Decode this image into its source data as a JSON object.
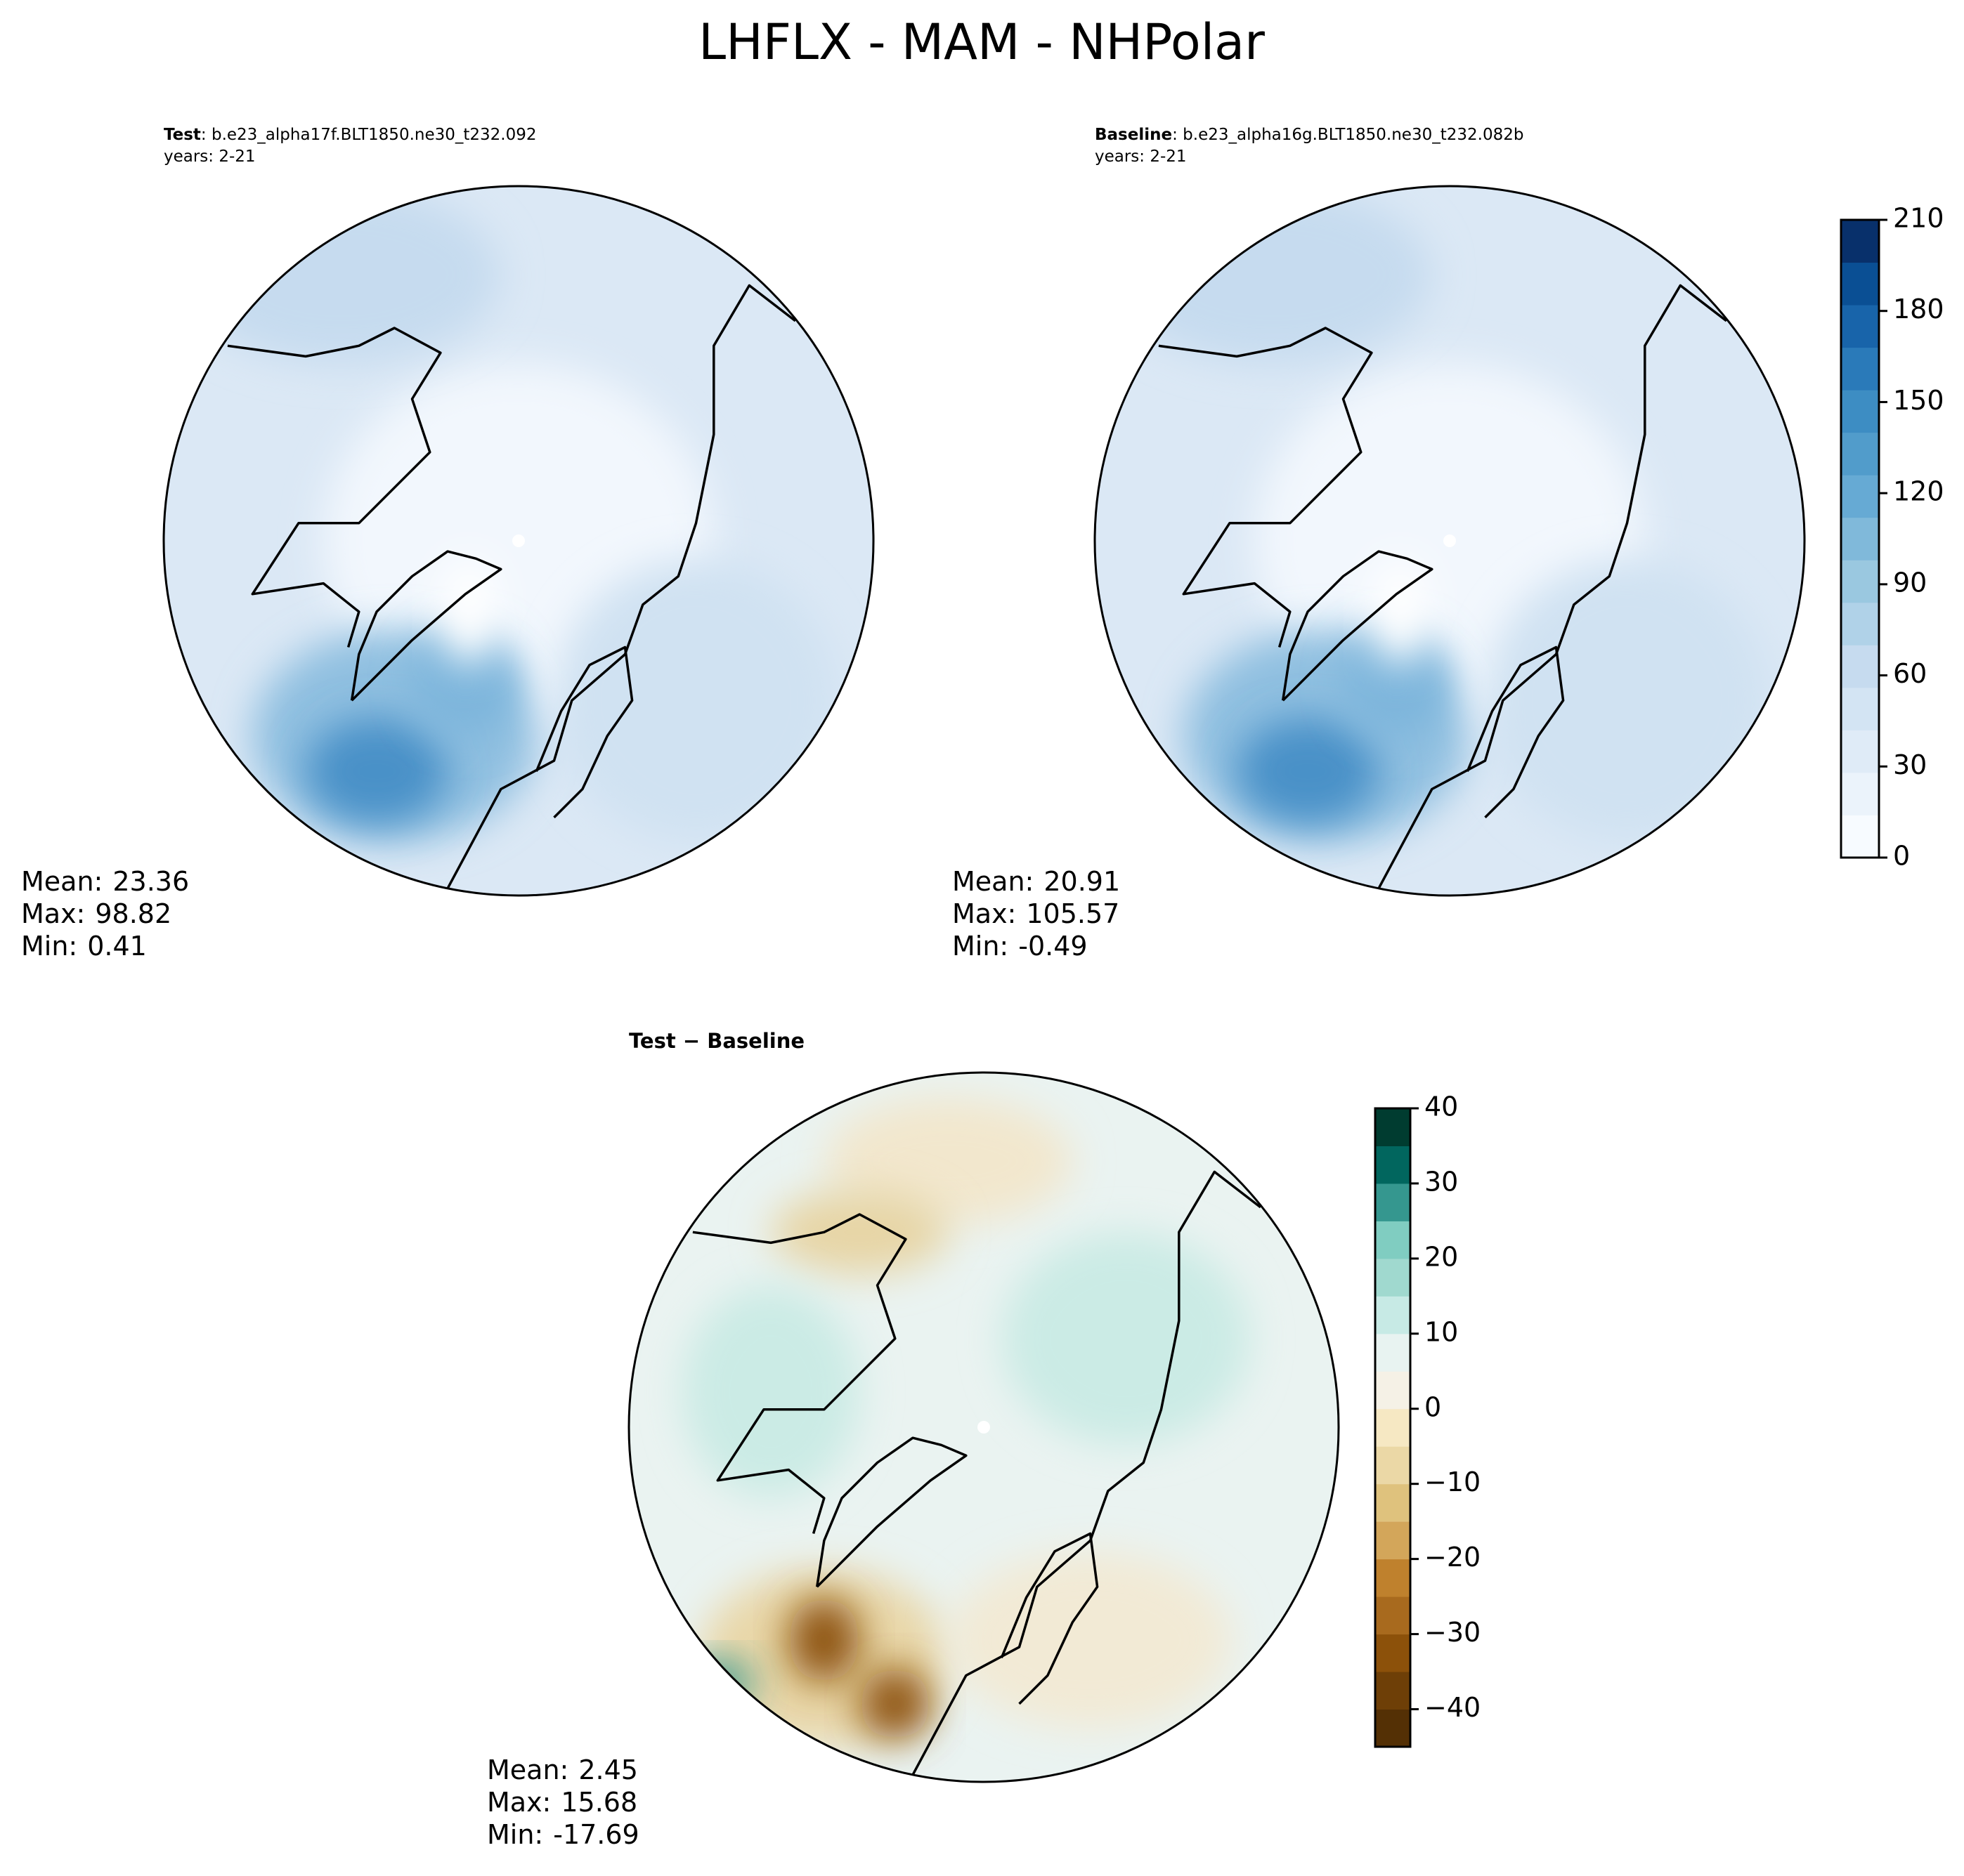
{
  "title": "LHFLX - MAM - NHPolar",
  "panels": [
    {
      "title": "Test",
      "case": ": b.e23_alpha17f.BLT1850.ne30_t232.092",
      "years": "years: 2-21",
      "stats": [
        {
          "label": "Mean:",
          "value": 23.36
        },
        {
          "label": "Max:",
          "value": 98.82
        },
        {
          "label": "Min:",
          "value": 0.41
        }
      ]
    },
    {
      "title": "Baseline",
      "case": ": b.e23_alpha16g.BLT1850.ne30_t232.082b",
      "years": "years: 2-21",
      "stats": [
        {
          "label": "Mean:",
          "value": 20.91
        },
        {
          "label": "Max:",
          "value": 105.57
        },
        {
          "label": "Min:",
          "value": -0.49
        }
      ]
    },
    {
      "title": "Test − Baseline",
      "stats": [
        {
          "label": "Mean:",
          "value": 2.45
        },
        {
          "label": "Max:",
          "value": 15.68
        },
        {
          "label": "Min:",
          "value": -17.69
        }
      ]
    }
  ],
  "colorbars": [
    {
      "lim": [
        0,
        210
      ],
      "ticks": [
        0,
        30,
        60,
        90,
        120,
        150,
        180,
        210
      ],
      "colors": [
        "#f7fbff",
        "#ebf3fb",
        "#dfebf7",
        "#d3e4f3",
        "#c6dbef",
        "#b0d2e8",
        "#9ac8e0",
        "#80b9da",
        "#66aad4",
        "#519ccb",
        "#3d8dc3",
        "#2a7ab9",
        "#1864aa",
        "#0a4f94",
        "#08306b"
      ]
    },
    {
      "lim": [
        -45,
        40
      ],
      "ticks": [
        {
          "value": -40,
          "label": "−40"
        },
        {
          "value": -30,
          "label": "−30"
        },
        {
          "value": -20,
          "label": "−20"
        },
        {
          "value": -10,
          "label": "−10"
        },
        0,
        10,
        20,
        30,
        40
      ],
      "colors": [
        "#543005",
        "#6e3f07",
        "#8c510a",
        "#a86a1e",
        "#bf812d",
        "#d3a65a",
        "#dfc27d",
        "#ebd8a6",
        "#f6e8c3",
        "#f5f1e6",
        "#e8f3f1",
        "#c7eae5",
        "#a0d9cf",
        "#80cdc1",
        "#35978f",
        "#01665e",
        "#003c30"
      ]
    }
  ]
}
